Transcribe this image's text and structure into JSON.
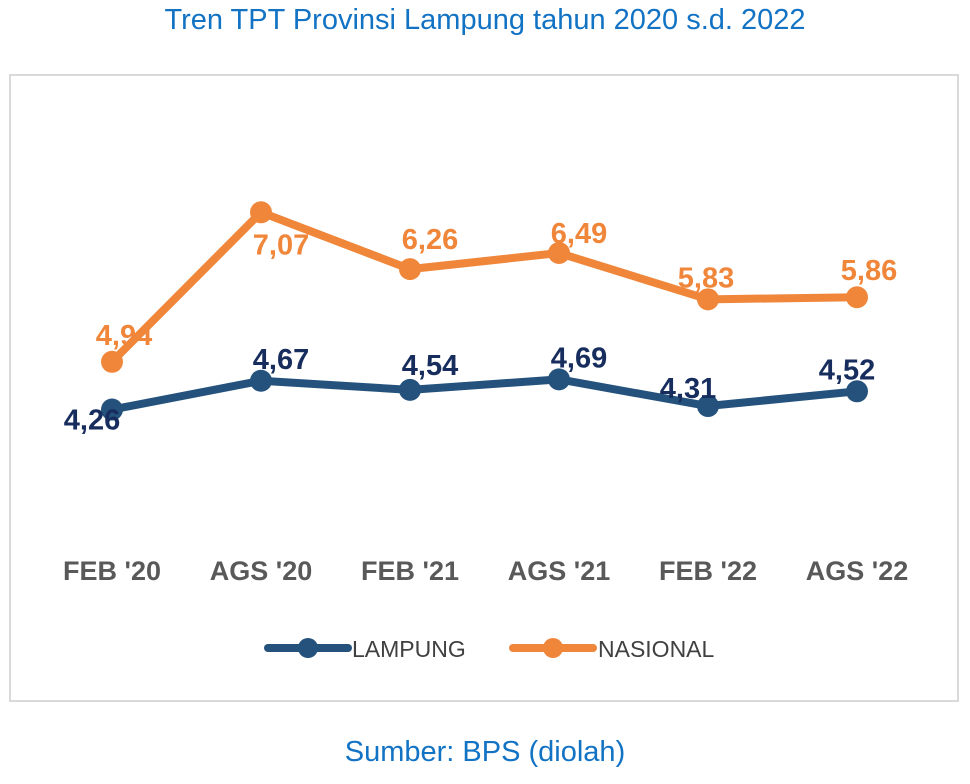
{
  "header": {
    "title": "Tren TPT Provinsi Lampung tahun 2020 s.d. 2022"
  },
  "footer": {
    "source": "Sumber: BPS (diolah)"
  },
  "chart_data": {
    "type": "line",
    "title": "Tren TPT Provinsi Lampung tahun 2020 s.d. 2022",
    "xlabel": "",
    "ylabel": "",
    "categories": [
      "FEB '20",
      "AGS '20",
      "FEB '21",
      "AGS '21",
      "FEB '22",
      "AGS '22"
    ],
    "series": [
      {
        "name": "LAMPUNG",
        "color": "#24527d",
        "label_color": "#172d5e",
        "values": [
          4.26,
          4.67,
          4.54,
          4.69,
          4.31,
          4.52
        ],
        "labels": [
          "4,26",
          "4,67",
          "4,54",
          "4,69",
          "4,31",
          "4,52"
        ]
      },
      {
        "name": "NASIONAL",
        "color": "#f0863a",
        "label_color": "#f0863a",
        "values": [
          4.94,
          7.07,
          6.26,
          6.49,
          5.83,
          5.86
        ],
        "labels": [
          "4,94",
          "7,07",
          "6,26",
          "6,49",
          "5,83",
          "5,86"
        ]
      }
    ],
    "grid": false,
    "legend": "bottom-center"
  }
}
